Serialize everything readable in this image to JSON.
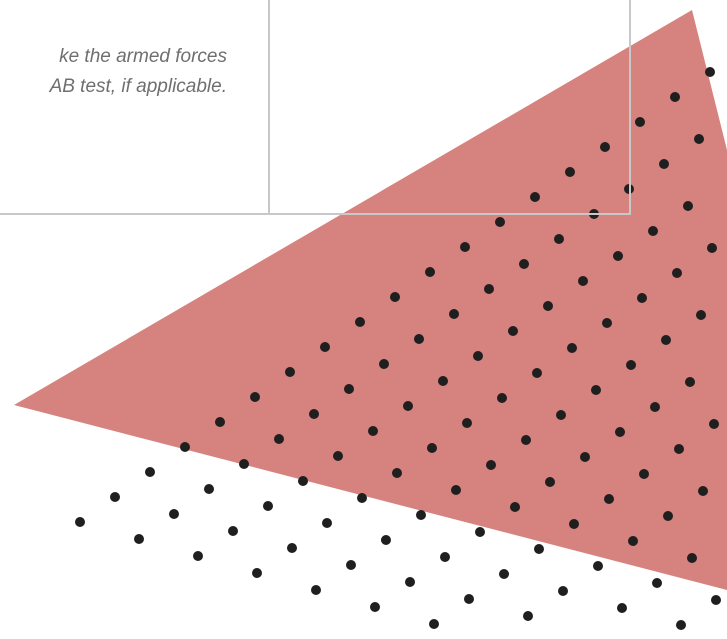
{
  "snippet": {
    "line1": "ke the armed forces",
    "line2": "AB test, if applicable."
  },
  "colors": {
    "triangle": "#d6837f",
    "dots": "#1f1f1f",
    "frame": "#c8c8c8",
    "text": "#6f6f6f"
  }
}
